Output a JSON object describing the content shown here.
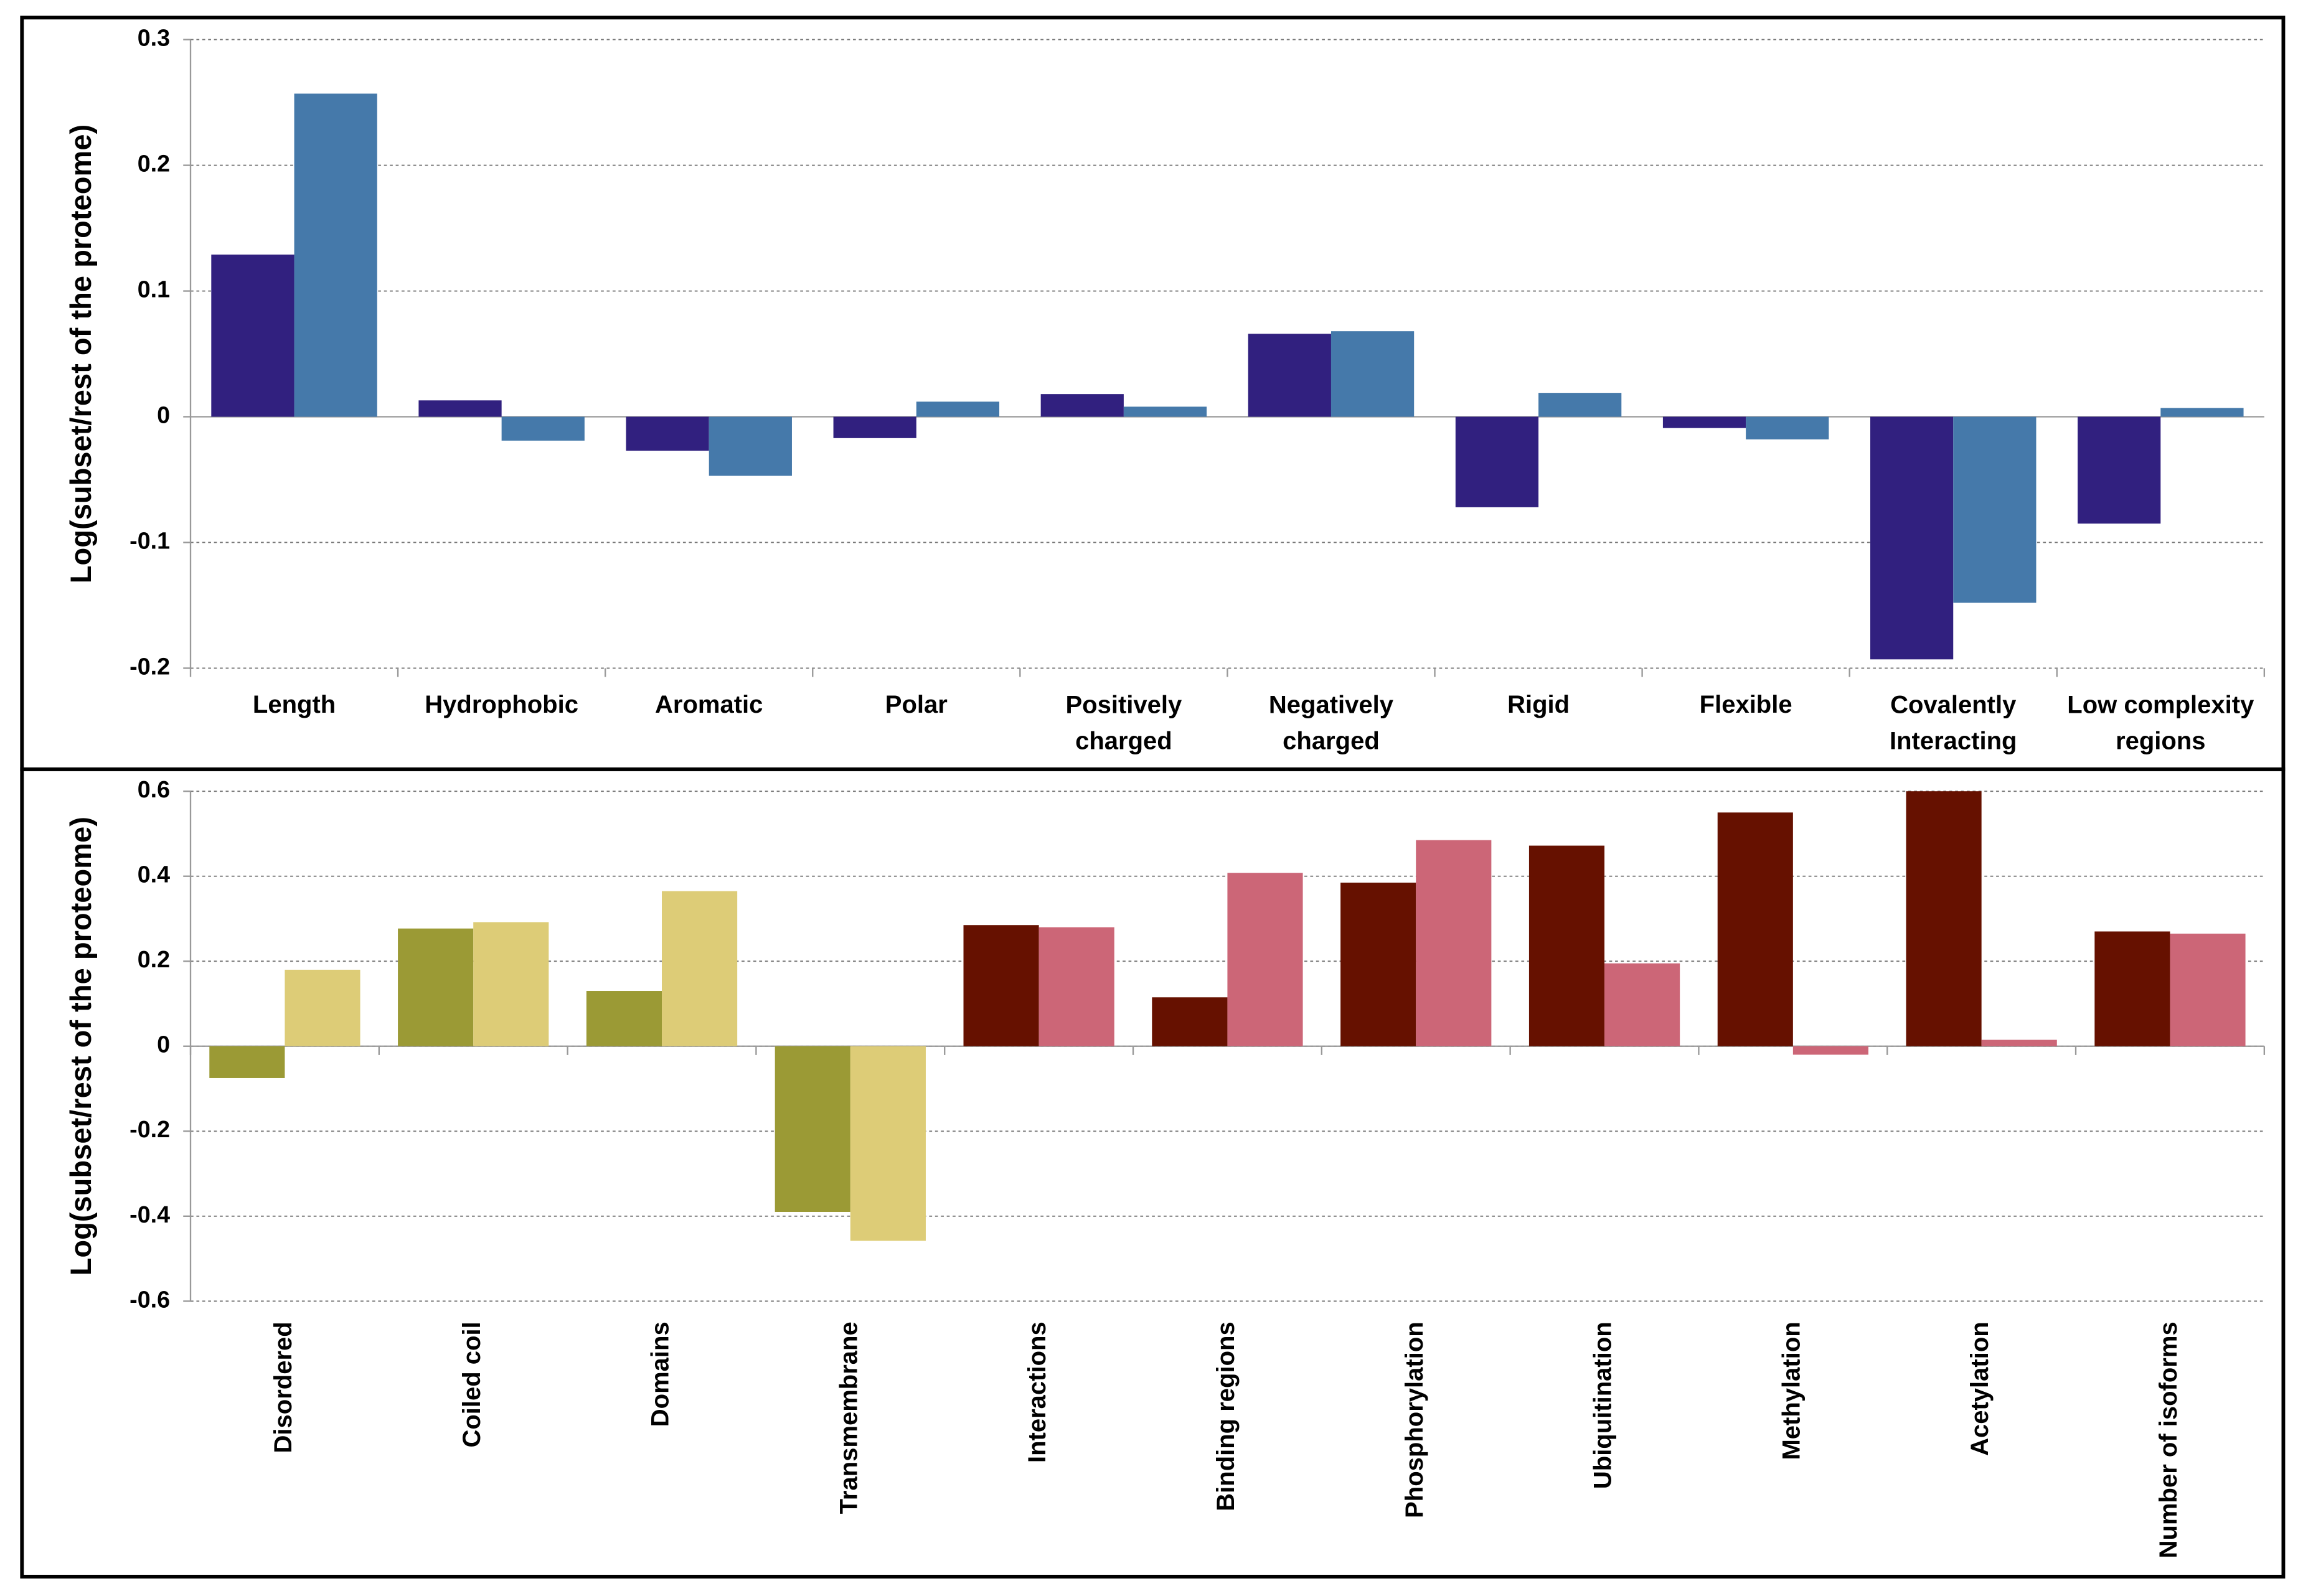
{
  "chart_data": [
    {
      "type": "bar",
      "y_label": "Log(subset/rest of the proteome)",
      "categories": [
        "Length",
        "Hydrophobic",
        "Aromatic",
        "Polar",
        "Positively charged",
        "Negatively charged",
        "Rigid",
        "Flexible",
        "Covalently Interacting",
        "Low complexity regions"
      ],
      "series": [
        {
          "color": "#31207f",
          "values": [
            0.129,
            0.013,
            -0.027,
            -0.017,
            0.018,
            0.066,
            -0.072,
            -0.009,
            -0.193,
            -0.085
          ]
        },
        {
          "color": "#4579aa",
          "values": [
            0.257,
            -0.019,
            -0.047,
            0.012,
            0.008,
            0.068,
            0.019,
            -0.018,
            -0.148,
            0.007
          ]
        }
      ],
      "ylim": [
        -0.2,
        0.3
      ],
      "yticks": [
        -0.2,
        -0.1,
        0,
        0.1,
        0.2,
        0.3
      ],
      "grid": true,
      "label_rotation": 0
    },
    {
      "type": "bar",
      "y_label": "Log(subset/rest of the proteome)",
      "categories": [
        "Disordered",
        "Coiled coil",
        "Domains",
        "Transmembrane",
        "Interactions",
        "Binding regions",
        "Phosphorylation",
        "Ubiquitination",
        "Methylation",
        "Acetylation",
        "Number of isoforms"
      ],
      "series": [
        {
          "colors": [
            "#9b9a35",
            "#9b9a35",
            "#9b9a35",
            "#9b9a35",
            "#661100",
            "#661100",
            "#661100",
            "#661100",
            "#661100",
            "#661100",
            "#661100"
          ],
          "values": [
            -0.075,
            0.277,
            0.13,
            -0.39,
            0.285,
            0.115,
            0.385,
            0.472,
            0.55,
            0.6,
            0.27
          ]
        },
        {
          "colors": [
            "#ddcc77",
            "#ddcc77",
            "#ddcc77",
            "#ddcc77",
            "#cc6677",
            "#cc6677",
            "#cc6677",
            "#cc6677",
            "#cc6677",
            "#cc6677",
            "#cc6677"
          ],
          "values": [
            0.18,
            0.292,
            0.365,
            -0.458,
            0.28,
            0.408,
            0.485,
            0.195,
            -0.02,
            0.015,
            0.265
          ]
        }
      ],
      "ylim": [
        -0.6,
        0.6
      ],
      "yticks": [
        -0.6,
        -0.4,
        -0.2,
        0,
        0.2,
        0.4,
        0.6
      ],
      "grid": true,
      "label_rotation": -90
    }
  ]
}
